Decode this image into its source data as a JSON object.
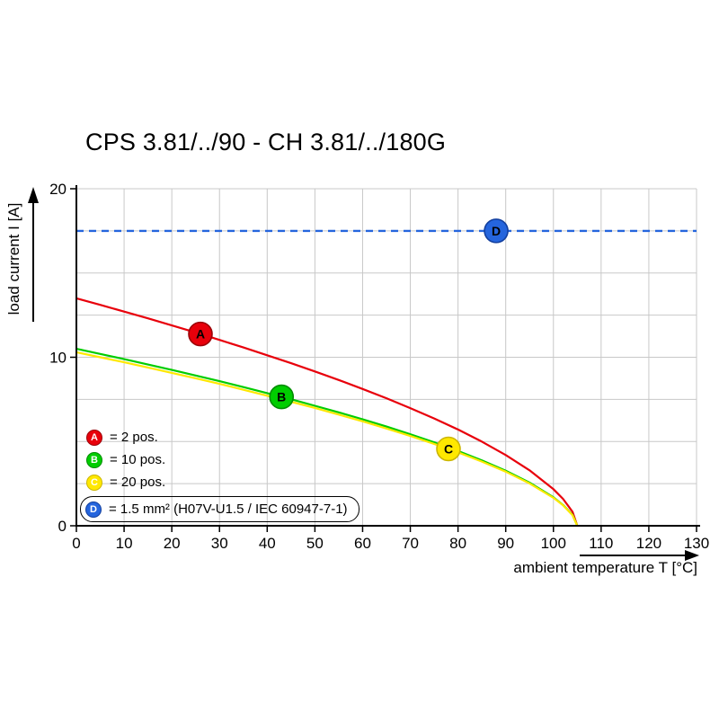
{
  "chart_data": {
    "type": "line",
    "title": "CPS 3.81/../90 - CH 3.81/../180G",
    "xlabel": "ambient temperature T [°C]",
    "ylabel": "load current I [A]",
    "xlim": [
      0,
      130
    ],
    "ylim": [
      0,
      20
    ],
    "x_ticks": [
      0,
      10,
      20,
      30,
      40,
      50,
      60,
      70,
      80,
      90,
      100,
      110,
      120,
      130
    ],
    "y_ticks": [
      0,
      10,
      20
    ],
    "y_grid_step": 2.5,
    "grid": true,
    "legend_position": "inside lower-left",
    "series": [
      {
        "name": "A",
        "label": "2 pos.",
        "color": "#e8000b",
        "border": "#9b0007",
        "letter_color": "#ffffff",
        "width": 2.2,
        "marker": {
          "x": 26,
          "y": 11.38
        },
        "points": [
          [
            0,
            13.5
          ],
          [
            5,
            13.11
          ],
          [
            10,
            12.71
          ],
          [
            15,
            12.31
          ],
          [
            20,
            11.89
          ],
          [
            25,
            11.47
          ],
          [
            30,
            11.03
          ],
          [
            35,
            10.58
          ],
          [
            40,
            10.12
          ],
          [
            45,
            9.65
          ],
          [
            50,
            9.16
          ],
          [
            55,
            8.65
          ],
          [
            60,
            8.12
          ],
          [
            65,
            7.57
          ],
          [
            70,
            6.98
          ],
          [
            75,
            6.37
          ],
          [
            80,
            5.71
          ],
          [
            85,
            4.99
          ],
          [
            90,
            4.2
          ],
          [
            95,
            3.29
          ],
          [
            100,
            2.17
          ],
          [
            102,
            1.6
          ],
          [
            104,
            0.83
          ],
          [
            105,
            0
          ]
        ]
      },
      {
        "name": "B",
        "label": "10 pos.",
        "color": "#00cd00",
        "border": "#008c00",
        "letter_color": "#ffffff",
        "width": 2.2,
        "marker": {
          "x": 43,
          "y": 7.65
        },
        "points": [
          [
            0,
            10.5
          ],
          [
            5,
            10.2
          ],
          [
            10,
            9.89
          ],
          [
            15,
            9.57
          ],
          [
            20,
            9.25
          ],
          [
            25,
            8.92
          ],
          [
            30,
            8.58
          ],
          [
            35,
            8.23
          ],
          [
            40,
            7.87
          ],
          [
            45,
            7.51
          ],
          [
            50,
            7.12
          ],
          [
            55,
            6.73
          ],
          [
            60,
            6.32
          ],
          [
            65,
            5.89
          ],
          [
            70,
            5.43
          ],
          [
            75,
            4.95
          ],
          [
            80,
            4.44
          ],
          [
            85,
            3.88
          ],
          [
            90,
            3.27
          ],
          [
            95,
            2.56
          ],
          [
            100,
            1.69
          ],
          [
            102,
            1.24
          ],
          [
            104,
            0.65
          ],
          [
            105,
            0
          ]
        ]
      },
      {
        "name": "C",
        "label": "20 pos.",
        "color": "#ffe800",
        "border": "#cbb500",
        "letter_color": "#ffffff",
        "width": 2.2,
        "marker": {
          "x": 78,
          "y": 4.56
        },
        "points": [
          [
            0,
            10.3
          ],
          [
            5,
            10.0
          ],
          [
            10,
            9.7
          ],
          [
            15,
            9.39
          ],
          [
            20,
            9.07
          ],
          [
            25,
            8.75
          ],
          [
            30,
            8.42
          ],
          [
            35,
            8.07
          ],
          [
            40,
            7.72
          ],
          [
            45,
            7.36
          ],
          [
            50,
            6.99
          ],
          [
            55,
            6.6
          ],
          [
            60,
            6.2
          ],
          [
            65,
            5.77
          ],
          [
            70,
            5.33
          ],
          [
            75,
            4.86
          ],
          [
            80,
            4.36
          ],
          [
            85,
            3.81
          ],
          [
            90,
            3.21
          ],
          [
            95,
            2.51
          ],
          [
            100,
            1.66
          ],
          [
            102,
            1.22
          ],
          [
            104,
            0.63
          ],
          [
            105,
            0
          ]
        ]
      },
      {
        "name": "D",
        "label": "1.5 mm² (H07V-U1.5 / IEC 60947-7-1)",
        "color": "#2565dd",
        "border": "#123f9e",
        "letter_color": "#ffffff",
        "width": 2.4,
        "dash": "8,6",
        "marker": {
          "x": 88,
          "y": 17.5
        },
        "points": [
          [
            0,
            17.5
          ],
          [
            130,
            17.5
          ]
        ]
      }
    ]
  },
  "legend": {
    "items": [
      {
        "key": "A",
        "text": "= 2 pos.",
        "boxed": false
      },
      {
        "key": "B",
        "text": "= 10 pos.",
        "boxed": false
      },
      {
        "key": "C",
        "text": "= 20 pos.",
        "boxed": false
      },
      {
        "key": "D",
        "text": "= 1.5 mm² (H07V-U1.5 / IEC 60947-7-1)",
        "boxed": true
      }
    ]
  },
  "colors": {
    "background": "#ffffff",
    "grid": "#c8c8c8",
    "axis": "#000000"
  }
}
